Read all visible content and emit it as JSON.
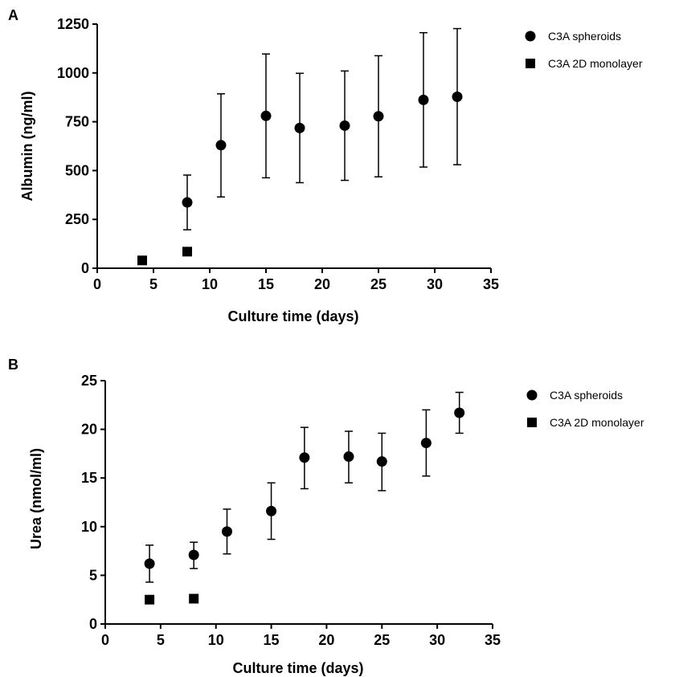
{
  "chart_data": [
    {
      "panel": "A",
      "type": "scatter",
      "title": "",
      "xlabel": "Culture time (days)",
      "ylabel": "Albumin (ng/ml)",
      "xlim": [
        0,
        35
      ],
      "ylim": [
        0,
        1250
      ],
      "xticks": [
        0,
        5,
        10,
        15,
        20,
        25,
        30,
        35
      ],
      "yticks": [
        0,
        250,
        500,
        750,
        1000,
        1250
      ],
      "grid": false,
      "legend": "top-right",
      "series": [
        {
          "name": "C3A spheroids",
          "marker": "circle",
          "color": "#000000",
          "points": [
            {
              "x": 8,
              "y": 337,
              "lo": 197,
              "hi": 477
            },
            {
              "x": 11,
              "y": 630,
              "lo": 365,
              "hi": 893
            },
            {
              "x": 15,
              "y": 780,
              "lo": 463,
              "hi": 1097
            },
            {
              "x": 18,
              "y": 718,
              "lo": 438,
              "hi": 998
            },
            {
              "x": 22,
              "y": 730,
              "lo": 450,
              "hi": 1010
            },
            {
              "x": 25,
              "y": 778,
              "lo": 468,
              "hi": 1088
            },
            {
              "x": 29,
              "y": 862,
              "lo": 518,
              "hi": 1206
            },
            {
              "x": 32,
              "y": 878,
              "lo": 530,
              "hi": 1227
            }
          ]
        },
        {
          "name": "C3A 2D monolayer",
          "marker": "square",
          "color": "#000000",
          "points": [
            {
              "x": 4,
              "y": 40
            },
            {
              "x": 8,
              "y": 85
            }
          ]
        }
      ]
    },
    {
      "panel": "B",
      "type": "scatter",
      "title": "",
      "xlabel": "Culture time (days)",
      "ylabel": "Urea (nmol/ml)",
      "xlim": [
        0,
        35
      ],
      "ylim": [
        0,
        25
      ],
      "xticks": [
        0,
        5,
        10,
        15,
        20,
        25,
        30,
        35
      ],
      "yticks": [
        0,
        5,
        10,
        15,
        20,
        25
      ],
      "grid": false,
      "legend": "top-right",
      "series": [
        {
          "name": "C3A spheroids",
          "marker": "circle",
          "color": "#000000",
          "points": [
            {
              "x": 4,
              "y": 6.2,
              "lo": 4.3,
              "hi": 8.1
            },
            {
              "x": 8,
              "y": 7.1,
              "lo": 5.7,
              "hi": 8.4
            },
            {
              "x": 11,
              "y": 9.5,
              "lo": 7.2,
              "hi": 11.8
            },
            {
              "x": 15,
              "y": 11.6,
              "lo": 8.7,
              "hi": 14.5
            },
            {
              "x": 18,
              "y": 17.1,
              "lo": 13.9,
              "hi": 20.2
            },
            {
              "x": 22,
              "y": 17.2,
              "lo": 14.5,
              "hi": 19.8
            },
            {
              "x": 25,
              "y": 16.7,
              "lo": 13.7,
              "hi": 19.6
            },
            {
              "x": 29,
              "y": 18.6,
              "lo": 15.2,
              "hi": 22.0
            },
            {
              "x": 32,
              "y": 21.7,
              "lo": 19.6,
              "hi": 23.8
            }
          ]
        },
        {
          "name": "C3A 2D monolayer",
          "marker": "square",
          "color": "#000000",
          "points": [
            {
              "x": 4,
              "y": 2.5
            },
            {
              "x": 8,
              "y": 2.6
            }
          ]
        }
      ]
    }
  ]
}
